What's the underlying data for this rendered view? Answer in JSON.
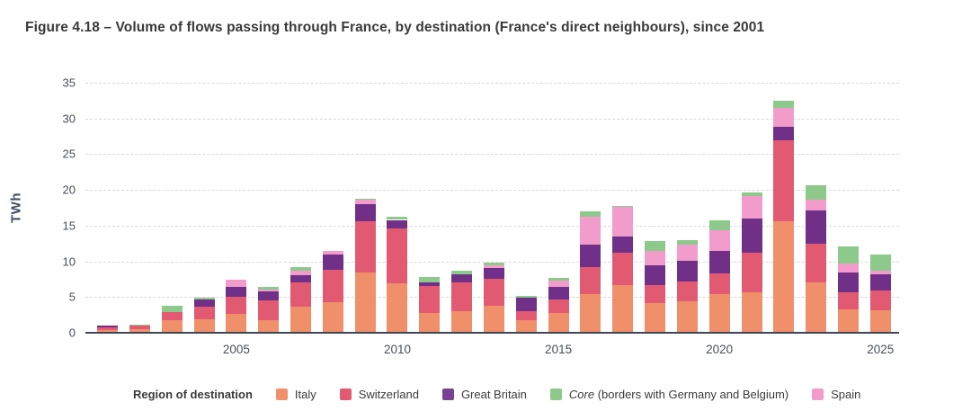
{
  "header": {
    "title": "Figure 4.18 – Volume of flows passing through France, by destination (France's direct neighbours), since 2001"
  },
  "chart_data": {
    "type": "bar",
    "stacked": true,
    "title": "Figure 4.18 – Volume of flows passing through France, by destination (France's direct neighbours), since 2001",
    "xlabel": "",
    "ylabel": "TWh",
    "ylim": [
      0,
      35
    ],
    "yticks": [
      0,
      5,
      10,
      15,
      20,
      25,
      30,
      35
    ],
    "xtick_years": [
      2005,
      2010,
      2015,
      2020,
      2025
    ],
    "grid": "horizontal-dashed",
    "legend_position": "bottom",
    "legend_title": "Region of destination",
    "categories": [
      2001,
      2002,
      2003,
      2004,
      2005,
      2006,
      2007,
      2008,
      2009,
      2010,
      2011,
      2012,
      2013,
      2014,
      2015,
      2016,
      2017,
      2018,
      2019,
      2020,
      2021,
      2022,
      2023,
      2024,
      2025
    ],
    "series": [
      {
        "name": "Italy",
        "color": "#F0906B",
        "values": [
          0.4,
          0.55,
          1.7,
          1.9,
          2.6,
          1.7,
          3.65,
          4.3,
          8.4,
          6.9,
          2.8,
          3.0,
          3.8,
          1.7,
          2.8,
          5.4,
          6.7,
          4.2,
          4.35,
          5.4,
          5.7,
          15.6,
          7.1,
          3.3,
          3.1
        ]
      },
      {
        "name": "Switzerland",
        "color": "#E25A72",
        "values": [
          0.4,
          0.45,
          1.2,
          1.8,
          2.4,
          2.85,
          3.45,
          4.5,
          7.2,
          7.7,
          3.7,
          4.1,
          3.7,
          1.3,
          1.85,
          3.8,
          4.5,
          2.5,
          2.85,
          2.9,
          5.5,
          11.4,
          5.4,
          2.4,
          2.8
        ]
      },
      {
        "name": "Great Britain",
        "color": "#713088",
        "values": [
          0.15,
          0,
          0,
          0.9,
          1.4,
          1.2,
          0.95,
          2.2,
          2.4,
          1.2,
          0.6,
          1.1,
          1.6,
          1.85,
          1.75,
          3.2,
          2.3,
          2.7,
          2.9,
          3.2,
          4.8,
          1.8,
          4.6,
          2.75,
          2.3
        ]
      },
      {
        "name": "Spain",
        "color": "#F19CCB",
        "values": [
          0,
          0,
          0,
          0,
          1.0,
          0.25,
          0.65,
          0.5,
          0.6,
          0,
          0,
          0,
          0.3,
          0,
          0.9,
          3.9,
          4.1,
          2.1,
          2.25,
          2.8,
          3.1,
          2.7,
          1.5,
          1.2,
          0.5
        ]
      },
      {
        "name": "Core",
        "color": "#8CC98B",
        "values": [
          0,
          0.1,
          0.9,
          0.25,
          0,
          0.4,
          0.45,
          0,
          0.2,
          0.4,
          0.75,
          0.5,
          0.45,
          0.35,
          0.4,
          0.7,
          0.2,
          1.3,
          0.65,
          1.5,
          0.6,
          1.0,
          2.1,
          2.4,
          2.3
        ]
      }
    ],
    "legend_entries": [
      {
        "name": "Italy",
        "italic": false,
        "suffix": "",
        "color": "#F0906B"
      },
      {
        "name": "Switzerland",
        "italic": false,
        "suffix": "",
        "color": "#E25A72"
      },
      {
        "name": "Great Britain",
        "italic": false,
        "suffix": "",
        "color": "#7A4292"
      },
      {
        "name": "Core",
        "italic": true,
        "suffix": " (borders with Germany and Belgium)",
        "color": "#8CC98B"
      },
      {
        "name": "Spain",
        "italic": false,
        "suffix": "",
        "color": "#F19CCB"
      }
    ]
  }
}
